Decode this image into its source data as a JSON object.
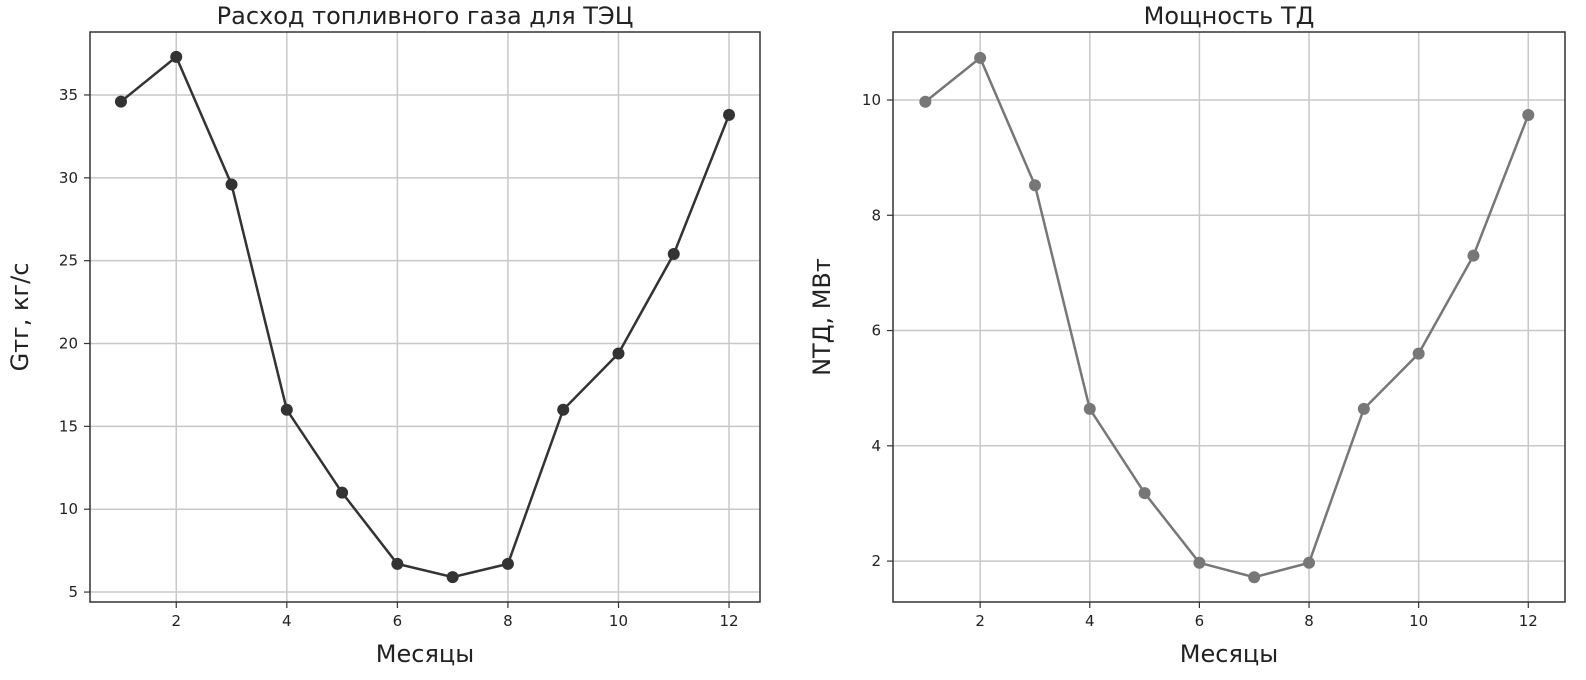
{
  "chart_data": [
    {
      "type": "line",
      "title": "Расход топливного газа для ТЭЦ",
      "xlabel": "Месяцы",
      "ylabel": "Gтг, кг/с",
      "x": [
        1,
        2,
        3,
        4,
        5,
        6,
        7,
        8,
        9,
        10,
        11,
        12
      ],
      "values": [
        34.6,
        37.3,
        29.6,
        16.0,
        11.0,
        6.7,
        5.9,
        6.7,
        16.0,
        19.4,
        25.4,
        33.8
      ],
      "xlim": [
        0.44,
        12.56
      ],
      "ylim": [
        4.4,
        38.8
      ],
      "xticks": [
        2,
        4,
        6,
        8,
        10,
        12
      ],
      "yticks": [
        5,
        10,
        15,
        20,
        25,
        30,
        35
      ],
      "grid": true,
      "color": "#333333"
    },
    {
      "type": "line",
      "title": "Мощность ТД",
      "xlabel": "Месяцы",
      "ylabel": "NТД, МВт",
      "x": [
        1,
        2,
        3,
        4,
        5,
        6,
        7,
        8,
        9,
        10,
        11,
        12
      ],
      "values": [
        9.97,
        10.73,
        8.52,
        4.64,
        3.18,
        1.97,
        1.72,
        1.97,
        4.64,
        5.6,
        7.3,
        9.74
      ],
      "xlim": [
        0.41,
        12.67
      ],
      "ylim": [
        1.29,
        11.18
      ],
      "xticks": [
        2,
        4,
        6,
        8,
        10,
        12
      ],
      "yticks": [
        2,
        4,
        6,
        8,
        10
      ],
      "grid": true,
      "color": "#777777"
    }
  ]
}
